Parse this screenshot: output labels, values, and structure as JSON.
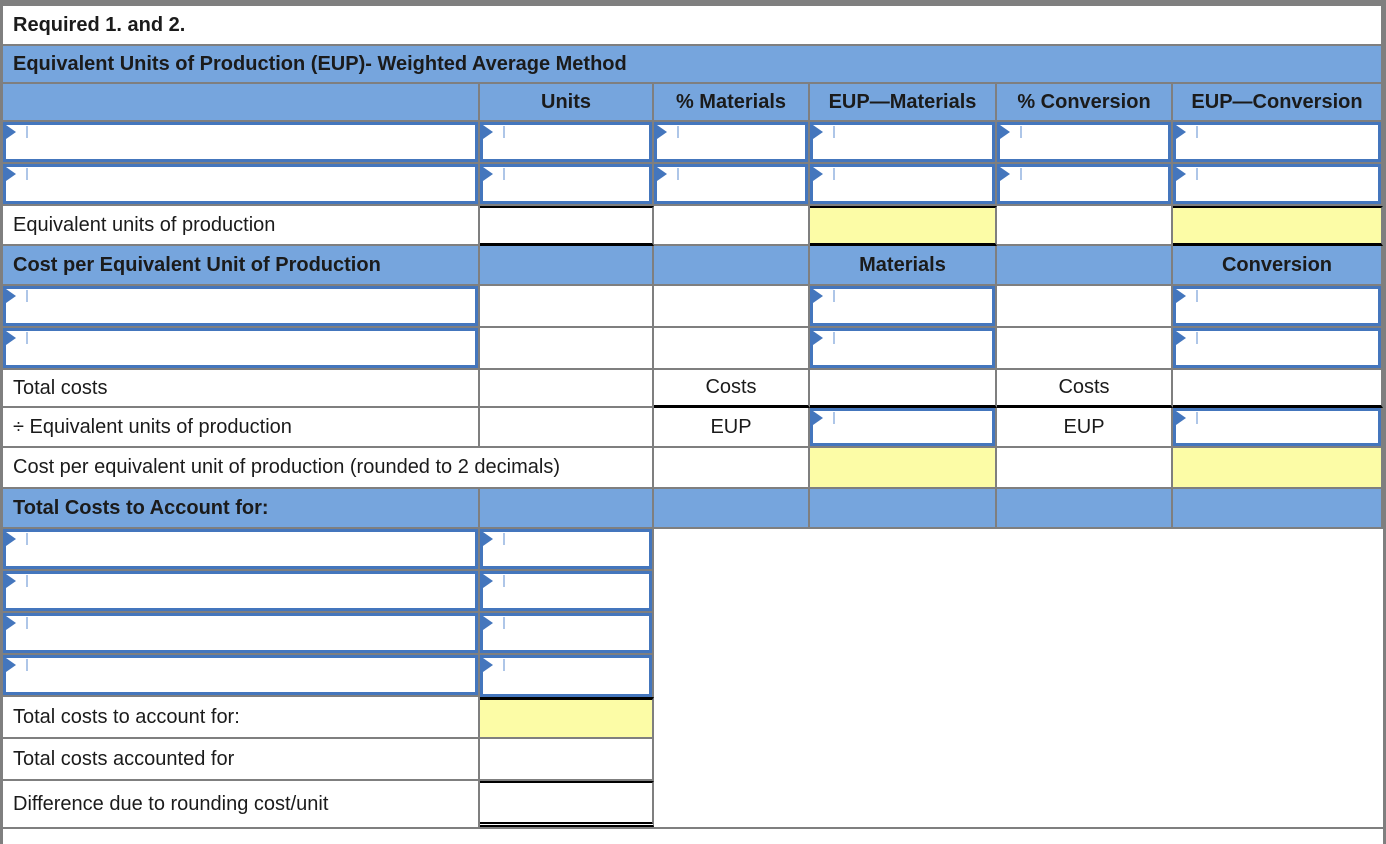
{
  "page": {
    "required_label": "Required 1. and 2."
  },
  "colors": {
    "header_blue": "#76A5DD",
    "highlight_yellow": "#FCFCA6",
    "grid_gray": "#7F7F7F",
    "input_blue": "#4476BD",
    "text_color": "#1B1B1B"
  },
  "eup_section": {
    "title": "Equivalent Units of Production (EUP)- Weighted Average Method",
    "col_units": "Units",
    "col_pct_materials": "% Materials",
    "col_eup_materials": "EUP—Materials",
    "col_pct_conversion": "% Conversion",
    "col_eup_conversion": "EUP—Conversion",
    "total_label": "Equivalent units of production"
  },
  "cost_section": {
    "title": "Cost per Equivalent Unit of Production",
    "col_materials": "Materials",
    "col_conversion": "Conversion",
    "total_costs_label": "Total costs",
    "costs_label": "Costs",
    "divide_label": "÷ Equivalent units of production",
    "eup_label": "EUP",
    "cost_per_unit_label": "Cost per equivalent unit of production (rounded to 2 decimals)"
  },
  "totals_section": {
    "title": "Total Costs to Account for:",
    "total_label": "Total costs to account for:",
    "accounted_label": "Total costs accounted for",
    "difference_label": "Difference due to rounding cost/unit"
  }
}
